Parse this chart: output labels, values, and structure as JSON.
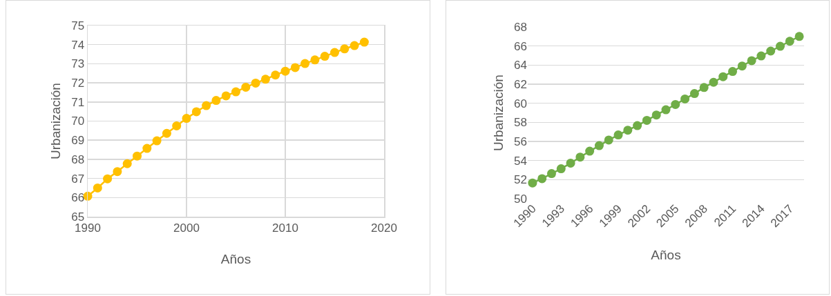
{
  "chart_data": [
    {
      "type": "line",
      "xlabel": "Años",
      "ylabel": "Urbanización",
      "x": [
        1990,
        1991,
        1992,
        1993,
        1994,
        1995,
        1996,
        1997,
        1998,
        1999,
        2000,
        2001,
        2002,
        2003,
        2004,
        2005,
        2006,
        2007,
        2008,
        2009,
        2010,
        2011,
        2012,
        2013,
        2014,
        2015,
        2016,
        2017,
        2018
      ],
      "series": [
        {
          "color": "#ffc000",
          "values": [
            66.07,
            66.5,
            66.98,
            67.36,
            67.77,
            68.17,
            68.57,
            68.97,
            69.36,
            69.75,
            70.14,
            70.49,
            70.81,
            71.08,
            71.32,
            71.53,
            71.77,
            71.99,
            72.19,
            72.41,
            72.61,
            72.8,
            73.01,
            73.2,
            73.39,
            73.59,
            73.78,
            73.95,
            74.13
          ]
        }
      ],
      "xlim": [
        1990,
        2020
      ],
      "xticks": [
        1990,
        2000,
        2010,
        2020
      ],
      "ylim": [
        65,
        75
      ],
      "yticks": [
        65,
        66,
        67,
        68,
        69,
        70,
        71,
        72,
        73,
        74,
        75
      ],
      "grid": true,
      "marker": "circle",
      "line_style": "solid"
    },
    {
      "type": "line",
      "xlabel": "Años",
      "ylabel": "Urbanización",
      "categories": [
        "1990",
        null,
        null,
        "1993",
        null,
        null,
        "1996",
        null,
        null,
        "1999",
        null,
        null,
        "2002",
        null,
        null,
        "2005",
        null,
        null,
        "2008",
        null,
        null,
        "2011",
        null,
        null,
        "2014",
        null,
        null,
        "2017",
        null
      ],
      "series": [
        {
          "color": "#70ad47",
          "values": [
            51.65,
            52.1,
            52.63,
            53.14,
            53.73,
            54.36,
            54.98,
            55.56,
            56.15,
            56.68,
            57.18,
            57.66,
            58.21,
            58.77,
            59.32,
            59.87,
            60.45,
            61.02,
            61.65,
            62.2,
            62.78,
            63.33,
            63.9,
            64.46,
            64.96,
            65.47,
            65.97,
            66.5,
            67.0
          ]
        }
      ],
      "ylim": [
        50,
        68
      ],
      "yticks": [
        50,
        52,
        54,
        56,
        58,
        60,
        62,
        64,
        66,
        68
      ],
      "grid": "y",
      "marker": "circle",
      "line_style": "solid"
    }
  ]
}
